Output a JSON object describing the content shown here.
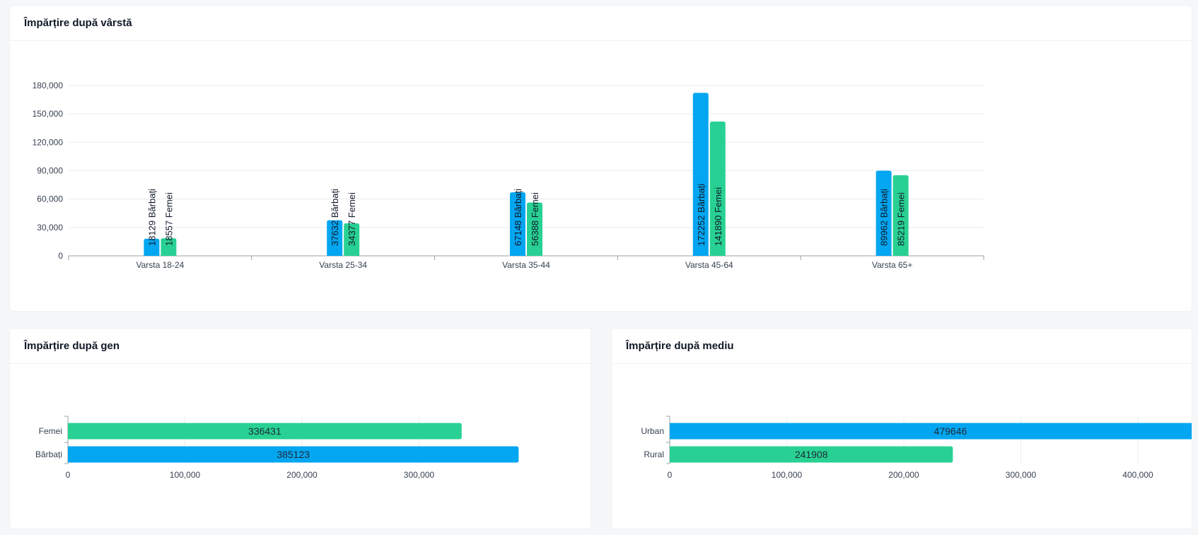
{
  "colors": {
    "male": "#03a6f0",
    "female": "#28d193",
    "grid": "#e8ebf0",
    "axis": "#9aa0a6"
  },
  "cards": {
    "age": {
      "title": "Împărțire după vârstă"
    },
    "gender": {
      "title": "Împărțire după gen"
    },
    "environment": {
      "title": "Împărțire după mediu"
    }
  },
  "chart_data": [
    {
      "type": "bar",
      "orientation": "vertical",
      "title": "Împărțire după vârstă",
      "categories": [
        "Varsta 18-24",
        "Varsta 25-34",
        "Varsta 35-44",
        "Varsta 45-64",
        "Varsta 65+"
      ],
      "series": [
        {
          "name": "Bărbați",
          "values": [
            18129,
            37632,
            67148,
            172252,
            89962
          ]
        },
        {
          "name": "Femei",
          "values": [
            18557,
            34377,
            56388,
            141890,
            85219
          ]
        }
      ],
      "data_labels": [
        [
          "18129 Bărbați",
          "37632 Bărbați",
          "67148 Bărbați",
          "172252 Bărbați",
          "89962 Bărbați"
        ],
        [
          "18557 Femei",
          "34377 Femei",
          "56388 Femei",
          "141890 Femei",
          "85219 Femei"
        ]
      ],
      "y_ticks": [
        "0",
        "30,000",
        "60,000",
        "90,000",
        "120,000",
        "150,000",
        "180,000"
      ],
      "ylim": [
        0,
        180000
      ],
      "grid": true
    },
    {
      "type": "bar",
      "orientation": "horizontal",
      "title": "Împărțire după gen",
      "categories": [
        "Femei",
        "Bărbați"
      ],
      "values": [
        336431,
        385123
      ],
      "data_labels": [
        "336431",
        "385123"
      ],
      "x_ticks": [
        "0",
        "100,000",
        "200,000",
        "300,000"
      ],
      "xlim": [
        0,
        400000
      ],
      "grid": true
    },
    {
      "type": "bar",
      "orientation": "horizontal",
      "title": "Împărțire după mediu",
      "categories": [
        "Urban",
        "Rural"
      ],
      "values": [
        479646,
        241908
      ],
      "data_labels": [
        "479646",
        "241908"
      ],
      "x_ticks": [
        "0",
        "100,000",
        "200,000",
        "300,000",
        "400,000"
      ],
      "xlim": [
        0,
        500000
      ],
      "grid": true
    }
  ]
}
